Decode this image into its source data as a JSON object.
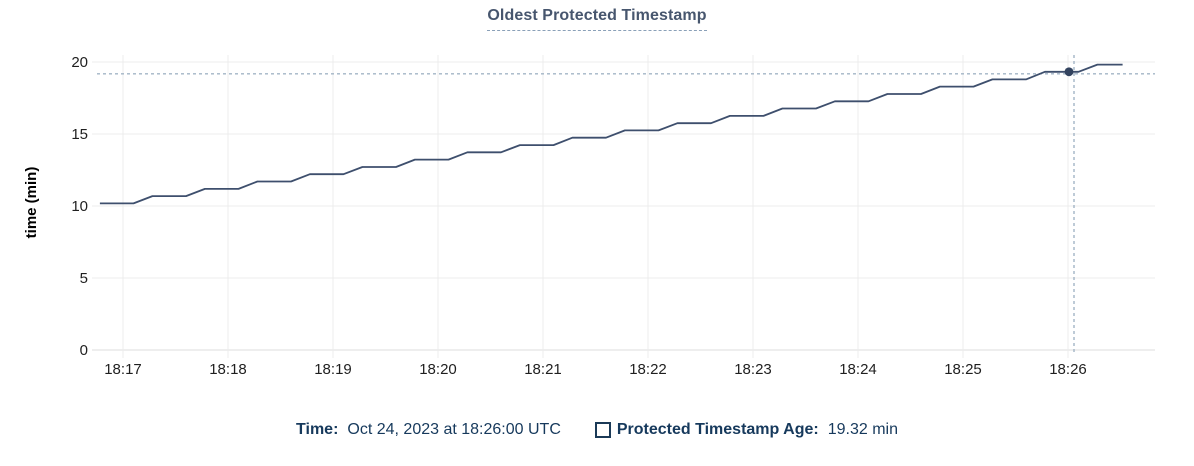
{
  "title": "Oldest Protected Timestamp",
  "colors": {
    "line": "#3e4f6d",
    "dot": "#33435f",
    "crosshair": "#a3b5c6",
    "grid": "#ececec",
    "baseline": "#dcdcdc",
    "tick_text": "#1f1f1f",
    "title_text": "#47566e",
    "legend_text": "#16395c"
  },
  "legend": {
    "time_label": "Time:",
    "time_value": "Oct 24, 2023 at 18:26:00 UTC",
    "series_label": "Protected Timestamp Age:",
    "series_value": "19.32 min"
  },
  "chart_data": {
    "type": "line",
    "title": "Oldest Protected Timestamp",
    "xlabel": "",
    "ylabel": "time (min)",
    "ylim": [
      0,
      20
    ],
    "y_ticks": [
      0,
      5,
      10,
      15,
      20
    ],
    "x_ticks": [
      {
        "label": "18:17",
        "minute": 17
      },
      {
        "label": "18:18",
        "minute": 18
      },
      {
        "label": "18:19",
        "minute": 19
      },
      {
        "label": "18:20",
        "minute": 20
      },
      {
        "label": "18:21",
        "minute": 21
      },
      {
        "label": "18:22",
        "minute": 22
      },
      {
        "label": "18:23",
        "minute": 23
      },
      {
        "label": "18:24",
        "minute": 24
      },
      {
        "label": "18:25",
        "minute": 25
      },
      {
        "label": "18:26",
        "minute": 26
      }
    ],
    "x_unit": "minutes after 18:00 UTC",
    "series": [
      {
        "name": "Protected Timestamp Age",
        "points": [
          [
            16.78,
            10.18
          ],
          [
            17.1,
            10.18
          ],
          [
            17.28,
            10.69
          ],
          [
            17.6,
            10.69
          ],
          [
            17.78,
            11.19
          ],
          [
            18.1,
            11.19
          ],
          [
            18.28,
            11.7
          ],
          [
            18.6,
            11.7
          ],
          [
            18.78,
            12.21
          ],
          [
            19.1,
            12.21
          ],
          [
            19.28,
            12.71
          ],
          [
            19.6,
            12.71
          ],
          [
            19.78,
            13.22
          ],
          [
            20.1,
            13.22
          ],
          [
            20.28,
            13.73
          ],
          [
            20.6,
            13.73
          ],
          [
            20.78,
            14.23
          ],
          [
            21.1,
            14.23
          ],
          [
            21.28,
            14.74
          ],
          [
            21.6,
            14.74
          ],
          [
            21.78,
            15.25
          ],
          [
            22.1,
            15.25
          ],
          [
            22.28,
            15.75
          ],
          [
            22.6,
            15.75
          ],
          [
            22.78,
            16.26
          ],
          [
            23.1,
            16.26
          ],
          [
            23.28,
            16.77
          ],
          [
            23.6,
            16.77
          ],
          [
            23.78,
            17.27
          ],
          [
            24.1,
            17.27
          ],
          [
            24.28,
            17.78
          ],
          [
            24.6,
            17.78
          ],
          [
            24.78,
            18.29
          ],
          [
            25.1,
            18.29
          ],
          [
            25.28,
            18.79
          ],
          [
            25.6,
            18.79
          ],
          [
            25.78,
            19.32
          ],
          [
            26.1,
            19.32
          ],
          [
            26.28,
            19.82
          ],
          [
            26.52,
            19.82
          ]
        ]
      }
    ],
    "highlight": {
      "minute": 26,
      "value": 19.32,
      "time_text": "Oct 24, 2023 at 18:26:00 UTC"
    },
    "legend_position": "bottom",
    "grid": true
  }
}
